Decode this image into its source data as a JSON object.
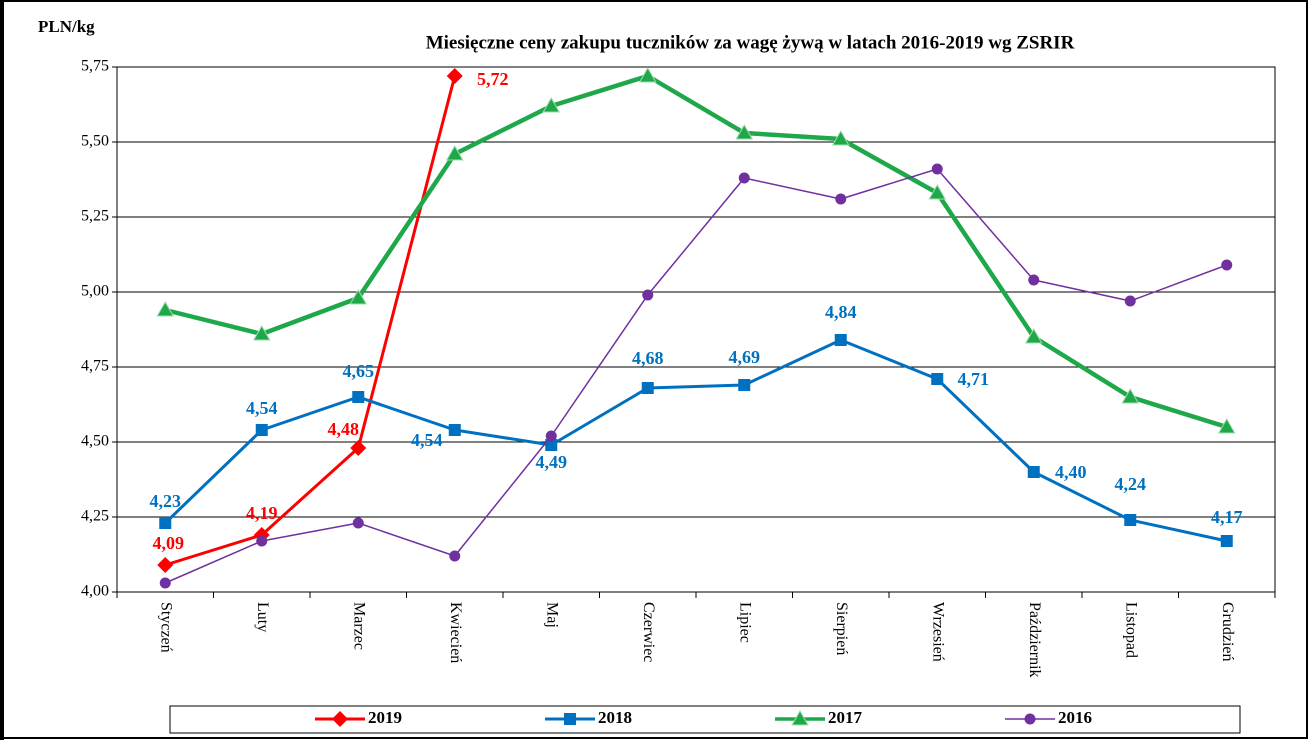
{
  "chart_data": {
    "type": "line",
    "title": "Miesięczne ceny zakupu tuczników za wagę żywą w latach 2016-2019 wg ZSRIR",
    "y_label": "PLN/kg",
    "categories": [
      "Styczeń",
      "Luty",
      "Marzec",
      "Kwiecień",
      "Maj",
      "Czerwiec",
      "Lipiec",
      "Sierpień",
      "Wrzesień",
      "Październik",
      "Listopad",
      "Grudzień"
    ],
    "ylim": [
      4.0,
      5.75
    ],
    "yticks": [
      {
        "value": 4.0,
        "label": "4,00"
      },
      {
        "value": 4.25,
        "label": "4,25"
      },
      {
        "value": 4.5,
        "label": "4,50"
      },
      {
        "value": 4.75,
        "label": "4,75"
      },
      {
        "value": 5.0,
        "label": "5,00"
      },
      {
        "value": 5.25,
        "label": "5,25"
      },
      {
        "value": 5.5,
        "label": "5,50"
      },
      {
        "value": 5.75,
        "label": "5,75"
      }
    ],
    "grid": true,
    "series": [
      {
        "name": "2019",
        "color": "#ff0000",
        "marker": "diamond",
        "values": [
          4.09,
          4.19,
          4.48,
          5.72,
          null,
          null,
          null,
          null,
          null,
          null,
          null,
          null
        ],
        "value_labels": [
          "4,09",
          "4,19",
          "4,48",
          "5,72",
          null,
          null,
          null,
          null,
          null,
          null,
          null,
          null
        ]
      },
      {
        "name": "2018",
        "color": "#0070c0",
        "marker": "square",
        "values": [
          4.23,
          4.54,
          4.65,
          4.54,
          4.49,
          4.68,
          4.69,
          4.84,
          4.71,
          4.4,
          4.24,
          4.17
        ],
        "value_labels": [
          "4,23",
          "4,54",
          "4,65",
          "4,54",
          "4,49",
          "4,68",
          "4,69",
          "4,84",
          "4,71",
          "4,40",
          "4,24",
          "4,17"
        ]
      },
      {
        "name": "2017",
        "color": "#1fa84a",
        "marker": "triangle",
        "values": [
          4.94,
          4.86,
          4.98,
          5.46,
          5.62,
          5.72,
          5.53,
          5.51,
          5.33,
          4.85,
          4.65,
          4.55
        ]
      },
      {
        "name": "2016",
        "color": "#7030a0",
        "marker": "circle",
        "values": [
          4.03,
          4.17,
          4.23,
          4.12,
          4.52,
          4.99,
          5.38,
          5.31,
          5.41,
          5.04,
          4.97,
          5.09
        ]
      }
    ]
  }
}
